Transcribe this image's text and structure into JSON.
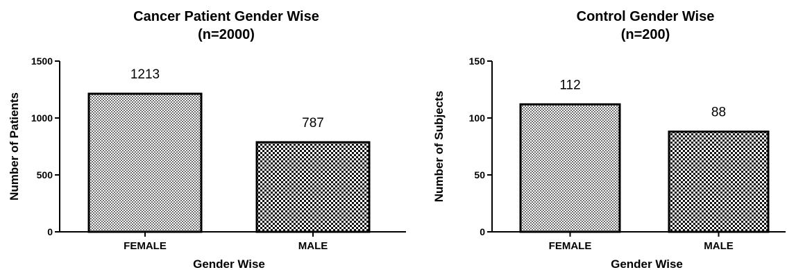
{
  "chart_data": [
    {
      "type": "bar",
      "title": "Cancer Patient Gender Wise",
      "subtitle": "(n=2000)",
      "xlabel": "Gender Wise",
      "ylabel": "Number of Patients",
      "categories": [
        "FEMALE",
        "MALE"
      ],
      "values": [
        1213,
        787
      ],
      "data_labels": [
        "1213",
        "787"
      ],
      "ylim": [
        0,
        1500
      ],
      "yticks": [
        0,
        500,
        1000,
        1500
      ],
      "ytick_labels": [
        "0",
        "500",
        "1000",
        "1500"
      ],
      "grid": false,
      "bar_patterns": [
        "fine-checker",
        "coarse-checker"
      ]
    },
    {
      "type": "bar",
      "title": "Control Gender Wise",
      "subtitle": "(n=200)",
      "xlabel": "Gender Wise",
      "ylabel": "Number of Subjects",
      "categories": [
        "FEMALE",
        "MALE"
      ],
      "values": [
        112,
        88
      ],
      "data_labels": [
        "112",
        "88"
      ],
      "ylim": [
        0,
        150
      ],
      "yticks": [
        0,
        50,
        100,
        150
      ],
      "ytick_labels": [
        "0",
        "50",
        "100",
        "150"
      ],
      "grid": false,
      "bar_patterns": [
        "fine-checker",
        "coarse-checker"
      ]
    }
  ]
}
